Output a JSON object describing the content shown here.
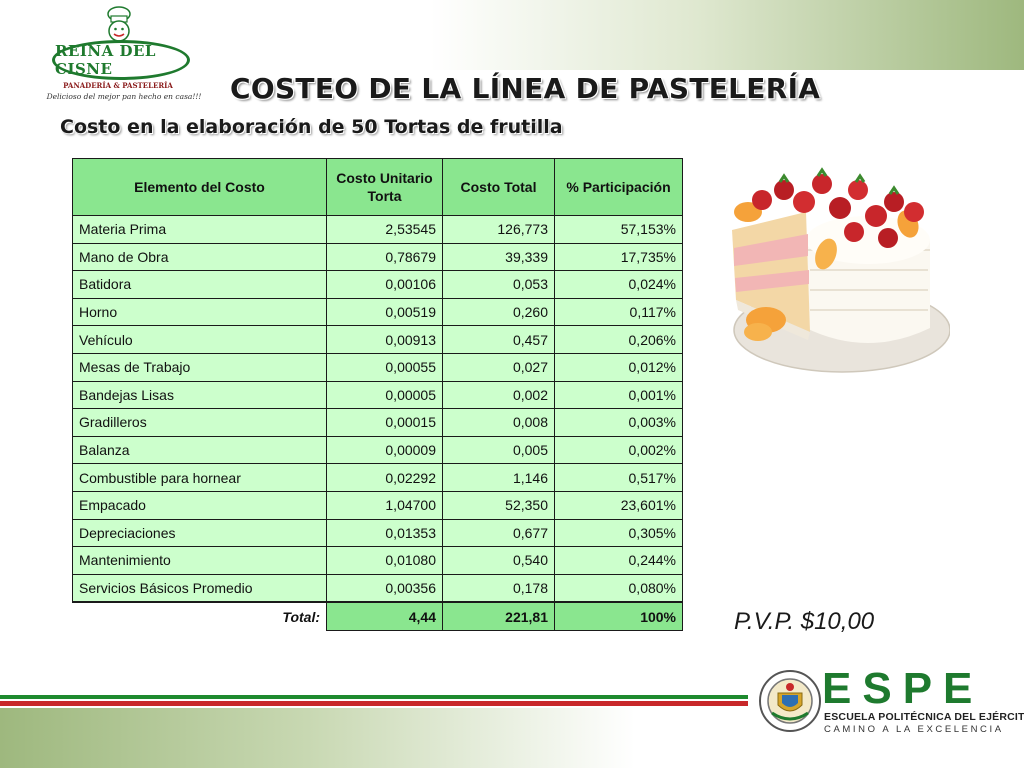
{
  "logo": {
    "name": "REINA DEL CISNE",
    "subtitle": "PANADERÍA & PASTELERÍA",
    "slogan": "Delicioso del mejor pan hecho en casa!!!"
  },
  "title": "COSTEO DE LA LÍNEA DE PASTELERÍA",
  "subtitle": "Costo en la elaboración de 50 Tortas de frutilla",
  "table": {
    "headers": [
      "Elemento del Costo",
      "Costo Unitario Torta",
      "Costo Total",
      "% Participación"
    ],
    "rows": [
      {
        "element": "Materia Prima",
        "unit": "2,53545",
        "total": "126,773",
        "pct": "57,153%"
      },
      {
        "element": "Mano de Obra",
        "unit": "0,78679",
        "total": "39,339",
        "pct": "17,735%"
      },
      {
        "element": "Batidora",
        "unit": "0,00106",
        "total": "0,053",
        "pct": "0,024%"
      },
      {
        "element": "Horno",
        "unit": "0,00519",
        "total": "0,260",
        "pct": "0,117%"
      },
      {
        "element": "Vehículo",
        "unit": "0,00913",
        "total": "0,457",
        "pct": "0,206%"
      },
      {
        "element": "Mesas de Trabajo",
        "unit": "0,00055",
        "total": "0,027",
        "pct": "0,012%"
      },
      {
        "element": "Bandejas Lisas",
        "unit": "0,00005",
        "total": "0,002",
        "pct": "0,001%"
      },
      {
        "element": "Gradilleros",
        "unit": "0,00015",
        "total": "0,008",
        "pct": "0,003%"
      },
      {
        "element": "Balanza",
        "unit": "0,00009",
        "total": "0,005",
        "pct": "0,002%"
      },
      {
        "element": "Combustible para hornear",
        "unit": "0,02292",
        "total": "1,146",
        "pct": "0,517%"
      },
      {
        "element": "Empacado",
        "unit": "1,04700",
        "total": "52,350",
        "pct": "23,601%"
      },
      {
        "element": "Depreciaciones",
        "unit": "0,01353",
        "total": "0,677",
        "pct": "0,305%"
      },
      {
        "element": "Mantenimiento",
        "unit": "0,01080",
        "total": "0,540",
        "pct": "0,244%"
      },
      {
        "element": "Servicios Básicos Promedio",
        "unit": "0,00356",
        "total": "0,178",
        "pct": "0,080%"
      }
    ],
    "footer": {
      "label": "Total:",
      "unit": "4,44",
      "total": "221,81",
      "pct": "100%"
    }
  },
  "pvp": "P.V.P. $10,00",
  "espe": {
    "letters": "ESPE",
    "name": "ESCUELA POLITÉCNICA DEL EJÉRCITO",
    "motto": "CAMINO A LA EXCELENCIA"
  },
  "colors": {
    "header_green": "#8ae68f",
    "row_green": "#ccffcc",
    "brand_green": "#1e7a2e",
    "stripe_red": "#c8282a"
  },
  "icons": {
    "logo": "chef-icon",
    "image": "strawberry-cake-image",
    "seal": "espe-seal-icon"
  }
}
